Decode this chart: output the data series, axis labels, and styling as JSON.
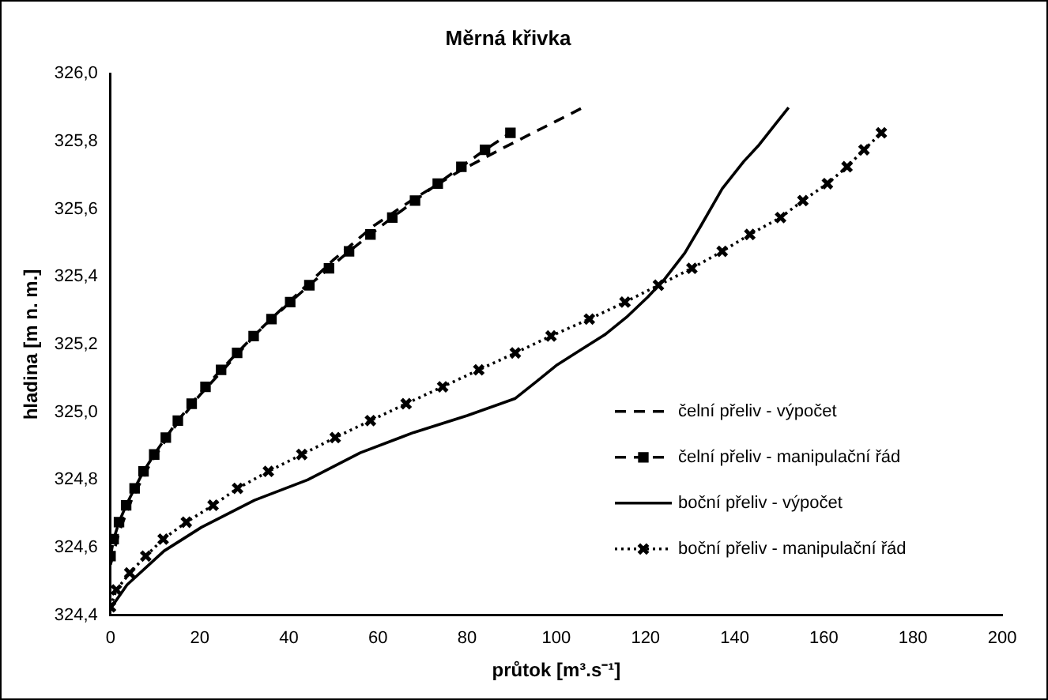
{
  "chart_data": {
    "type": "line",
    "title": "Měrná křivka",
    "xlabel": "průtok [m³.s⁻¹]",
    "ylabel": "hladina [m n. m.]",
    "xlim": [
      0,
      200
    ],
    "xticks": [
      0,
      20,
      40,
      60,
      80,
      100,
      120,
      140,
      160,
      180,
      200
    ],
    "ylim": [
      324.4,
      326.0
    ],
    "yticks": [
      {
        "value": 324.4,
        "label": "324,4"
      },
      {
        "value": 324.6,
        "label": "324,6"
      },
      {
        "value": 324.8,
        "label": "324,8"
      },
      {
        "value": 325.0,
        "label": "325,0"
      },
      {
        "value": 325.2,
        "label": "325,2"
      },
      {
        "value": 325.4,
        "label": "325,4"
      },
      {
        "value": 325.6,
        "label": "325,6"
      },
      {
        "value": 325.8,
        "label": "325,8"
      },
      {
        "value": 326.0,
        "label": "326,0"
      }
    ],
    "grid": false,
    "legend": "bottom right",
    "series": [
      {
        "name": "čelní přeliv - výpočet",
        "color": "#000000",
        "line_style": "dashed",
        "marker": "none",
        "x": [
          0,
          2,
          5,
          9,
          14,
          20,
          27,
          34,
          42,
          50,
          59,
          68,
          78,
          88,
          97,
          106
        ],
        "values": [
          324.55,
          324.65,
          324.75,
          324.85,
          324.95,
          325.05,
          325.15,
          325.25,
          325.35,
          325.45,
          325.55,
          325.63,
          325.71,
          325.78,
          325.84,
          325.9
        ]
      },
      {
        "name": "čelní přeliv - manipulační řád",
        "color": "#000000",
        "line_style": "dashed",
        "marker": "square",
        "x": [
          0,
          0.7,
          1.9,
          3.5,
          5.4,
          7.4,
          9.8,
          12.4,
          15.1,
          18.2,
          21.3,
          24.8,
          28.4,
          32.1,
          36.1,
          40.3,
          44.6,
          49.0,
          53.5,
          58.3,
          63.2,
          68.3,
          73.4,
          78.7,
          84.0,
          89.7
        ],
        "values": [
          324.575,
          324.625,
          324.675,
          324.725,
          324.775,
          324.825,
          324.875,
          324.925,
          324.975,
          325.025,
          325.075,
          325.125,
          325.175,
          325.225,
          325.275,
          325.325,
          325.375,
          325.425,
          325.475,
          325.525,
          325.575,
          325.625,
          325.675,
          325.725,
          325.775,
          325.825
        ]
      },
      {
        "name": "boční přeliv - výpočet",
        "color": "#000000",
        "line_style": "solid",
        "marker": "none",
        "x": [
          0,
          3.7,
          12,
          20.4,
          32.3,
          44.2,
          56,
          68,
          80,
          90.7,
          95.5,
          100.2,
          105,
          111,
          115.7,
          120.5,
          124.1,
          128.8,
          132.4,
          137.2,
          142,
          145.5,
          149.1,
          152.1
        ],
        "values": [
          324.42,
          324.49,
          324.59,
          324.66,
          324.74,
          324.8,
          324.88,
          324.94,
          324.99,
          325.04,
          325.09,
          325.14,
          325.18,
          325.23,
          325.28,
          325.34,
          325.39,
          325.47,
          325.55,
          325.66,
          325.74,
          325.79,
          325.85,
          325.9
        ]
      },
      {
        "name": "boční přeliv - manipulační řád",
        "color": "#000000",
        "line_style": "dotted",
        "marker": "cross",
        "x": [
          0,
          1.3,
          4.3,
          7.9,
          11.8,
          17,
          23,
          28.5,
          35.4,
          42.9,
          50.4,
          58.3,
          66.3,
          74.5,
          82.6,
          90.8,
          98.8,
          107.4,
          115.4,
          122.9,
          130.4,
          137.2,
          143.4,
          150.3,
          155.3,
          160.8,
          165.2,
          169,
          172.9
        ],
        "values": [
          324.425,
          324.475,
          324.525,
          324.575,
          324.625,
          324.675,
          324.725,
          324.775,
          324.825,
          324.875,
          324.925,
          324.975,
          325.025,
          325.075,
          325.125,
          325.175,
          325.225,
          325.275,
          325.325,
          325.375,
          325.425,
          325.475,
          325.525,
          325.575,
          325.625,
          325.675,
          325.725,
          325.775,
          325.825
        ]
      }
    ]
  }
}
